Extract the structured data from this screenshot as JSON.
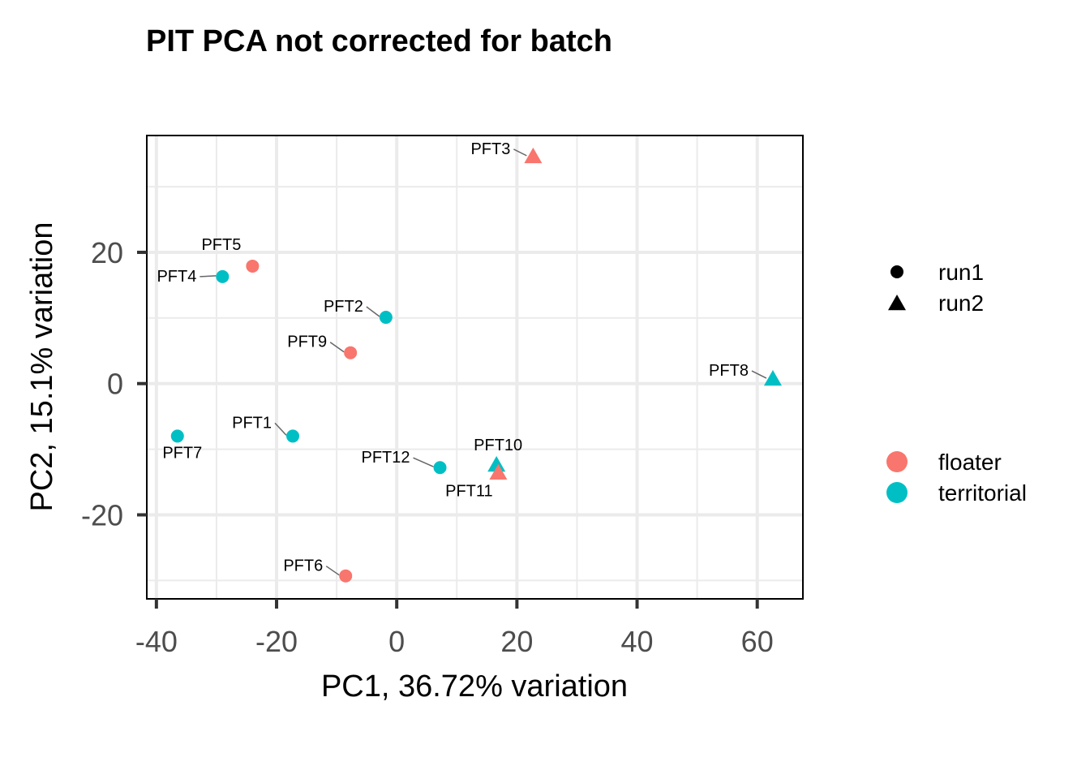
{
  "chart_data": {
    "type": "scatter",
    "title": "PIT PCA not corrected for batch",
    "xlabel": "PC1, 36.72% variation",
    "ylabel": "PC2, 15.1% variation",
    "xlim": [
      -41.6,
      67.6
    ],
    "ylim": [
      -32.8,
      37.8
    ],
    "x_ticks": [
      -40,
      -20,
      0,
      20,
      40,
      60
    ],
    "x_tick_labels": [
      "-40",
      "-20",
      "0",
      "20",
      "40",
      "60"
    ],
    "y_ticks": [
      -20,
      0,
      20
    ],
    "y_tick_labels": [
      "-20",
      "0",
      "20"
    ],
    "grid": true,
    "colors": {
      "floater": "#F8766D",
      "territorial": "#00BFC4"
    },
    "points": [
      {
        "label": "PFT1",
        "x": -17.3,
        "y": -8.0,
        "group": "territorial",
        "run": "run1"
      },
      {
        "label": "PFT2",
        "x": -1.8,
        "y": 10.1,
        "group": "territorial",
        "run": "run1"
      },
      {
        "label": "PFT3",
        "x": 22.7,
        "y": 34.6,
        "group": "floater",
        "run": "run2"
      },
      {
        "label": "PFT4",
        "x": -29.0,
        "y": 16.3,
        "group": "territorial",
        "run": "run1"
      },
      {
        "label": "PFT5",
        "x": -24.0,
        "y": 17.9,
        "group": "floater",
        "run": "run1"
      },
      {
        "label": "PFT6",
        "x": -8.5,
        "y": -29.3,
        "group": "floater",
        "run": "run1"
      },
      {
        "label": "PFT7",
        "x": -36.5,
        "y": -8.0,
        "group": "territorial",
        "run": "run1"
      },
      {
        "label": "PFT8",
        "x": 62.6,
        "y": 0.7,
        "group": "territorial",
        "run": "run2"
      },
      {
        "label": "PFT9",
        "x": -7.7,
        "y": 4.7,
        "group": "floater",
        "run": "run1"
      },
      {
        "label": "PFT10",
        "x": 16.6,
        "y": -12.4,
        "group": "territorial",
        "run": "run2"
      },
      {
        "label": "PFT11",
        "x": 16.9,
        "y": -13.6,
        "group": "floater",
        "run": "run2"
      },
      {
        "label": "PFT12",
        "x": 7.2,
        "y": -12.8,
        "group": "territorial",
        "run": "run1"
      }
    ],
    "legend_shape": {
      "placement": "right",
      "entries": [
        {
          "label": "run1",
          "shape": "circle"
        },
        {
          "label": "run2",
          "shape": "triangle"
        }
      ]
    },
    "legend_color": {
      "placement": "right",
      "entries": [
        {
          "label": "floater",
          "color": "#F8766D"
        },
        {
          "label": "territorial",
          "color": "#00BFC4"
        }
      ]
    }
  }
}
